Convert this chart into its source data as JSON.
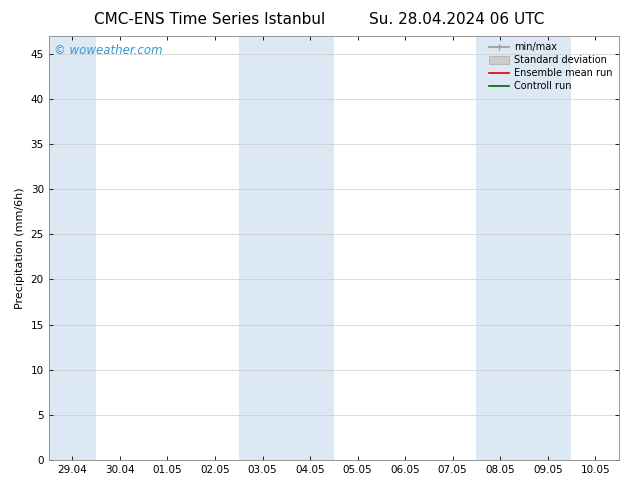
{
  "title_left": "CMC-ENS Time Series Istanbul",
  "title_right": "Su. 28.04.2024 06 UTC",
  "ylabel": "Precipitation (mm/6h)",
  "ylim": [
    0,
    47
  ],
  "yticks": [
    0,
    5,
    10,
    15,
    20,
    25,
    30,
    35,
    40,
    45
  ],
  "xtick_labels": [
    "29.04",
    "30.04",
    "01.05",
    "02.05",
    "03.05",
    "04.05",
    "05.05",
    "06.05",
    "07.05",
    "08.05",
    "09.05",
    "10.05"
  ],
  "num_xticks": 12,
  "background_color": "#ffffff",
  "plot_bg_color": "#ffffff",
  "shaded_bands": [
    {
      "xstart": 0.0,
      "xend": 1.0,
      "color": "#dce9f5"
    },
    {
      "xstart": 4.0,
      "xend": 6.0,
      "color": "#dce9f5"
    },
    {
      "xstart": 9.0,
      "xend": 11.0,
      "color": "#dce9f5"
    }
  ],
  "watermark_text": "© woweather.com",
  "watermark_color": "#3399cc",
  "legend_entries": [
    {
      "label": "min/max",
      "color": "#999999",
      "lw": 1.2
    },
    {
      "label": "Standard deviation",
      "color": "#cccccc",
      "lw": 6
    },
    {
      "label": "Ensemble mean run",
      "color": "#dd0000",
      "lw": 1.2
    },
    {
      "label": "Controll run",
      "color": "#006600",
      "lw": 1.2
    }
  ],
  "title_fontsize": 11,
  "tick_fontsize": 7.5,
  "ylabel_fontsize": 8,
  "legend_fontsize": 7,
  "watermark_fontsize": 8.5,
  "grid_color": "#cccccc",
  "grid_lw": 0.5
}
